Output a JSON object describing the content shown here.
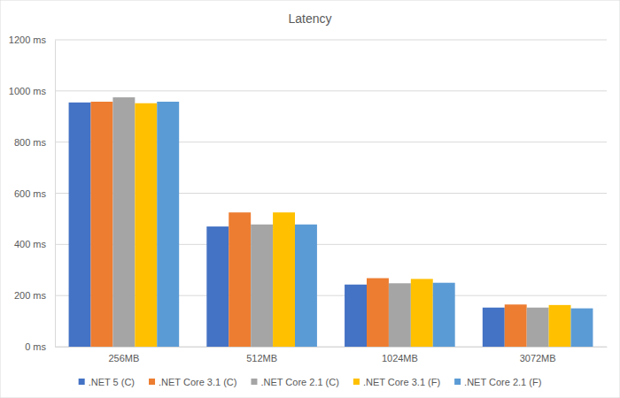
{
  "chart_data": {
    "type": "bar",
    "title": "Latency",
    "categories": [
      "256MB",
      "512MB",
      "1024MB",
      "3072MB"
    ],
    "series": [
      {
        "name": ".NET 5 (C)",
        "color": "#4472c4",
        "values": [
          955,
          470,
          243,
          153
        ]
      },
      {
        "name": ".NET Core 3.1 (C)",
        "color": "#ed7d31",
        "values": [
          958,
          525,
          268,
          165
        ]
      },
      {
        "name": ".NET Core 2.1 (C)",
        "color": "#a5a5a5",
        "values": [
          975,
          478,
          248,
          153
        ]
      },
      {
        "name": ".NET Core 3.1 (F)",
        "color": "#ffc000",
        "values": [
          952,
          525,
          265,
          163
        ]
      },
      {
        "name": ".NET Core 2.1 (F)",
        "color": "#5b9bd5",
        "values": [
          958,
          478,
          250,
          150
        ]
      }
    ],
    "ylim": [
      0,
      1200
    ],
    "yticks": [
      {
        "value": 0,
        "label": "0 ms"
      },
      {
        "value": 200,
        "label": "200 ms"
      },
      {
        "value": 400,
        "label": "400 ms"
      },
      {
        "value": 600,
        "label": "600 ms"
      },
      {
        "value": 800,
        "label": "800 ms"
      },
      {
        "value": 1000,
        "label": "1000 ms"
      },
      {
        "value": 1200,
        "label": "1200 ms"
      }
    ],
    "grid": true,
    "legend": "bottom"
  }
}
